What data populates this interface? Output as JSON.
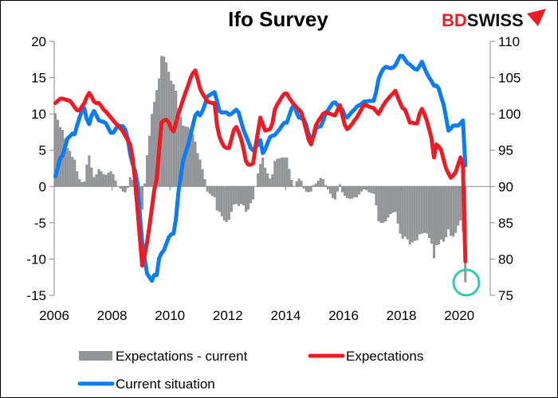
{
  "chart_data": {
    "type": "bar+line",
    "title": "Ifo Survey",
    "logo": "BDSWISS",
    "left_axis": {
      "range": [
        -15,
        20
      ],
      "ticks": [
        "20",
        "15",
        "10",
        "5",
        "0",
        "-5",
        "-10",
        "-15"
      ]
    },
    "right_axis": {
      "range": [
        75,
        110
      ],
      "ticks": [
        "110",
        "105",
        "100",
        "95",
        "90",
        "85",
        "80",
        "75"
      ]
    },
    "x_ticks": [
      "2006",
      "2008",
      "2010",
      "2012",
      "2014",
      "2016",
      "2018",
      "2020"
    ],
    "grid": false,
    "legend_placement": "bottom",
    "colors": {
      "bars": "#939598",
      "expectations": "#ED1C24",
      "current": "#0A7CF5",
      "highlight_circle": "#2ECDB0"
    },
    "annotation": "circle highlighting the March 2020 bar",
    "series": [
      {
        "name": "Expectations - current",
        "type": "bar",
        "axis": "left",
        "monthly": {
          "2006": [
            10.1,
            9.2,
            8.2,
            7.8,
            6.6,
            5.3,
            4.9,
            4.1,
            3.7,
            2.1,
            1.0,
            0.6
          ],
          "2007": [
            0.7,
            3.0,
            4.3,
            2.6,
            1.3,
            1.7,
            2.4,
            2.1,
            1.7,
            1.6,
            1.9,
            2.1
          ],
          "2008": [
            1.7,
            0.8,
            0.0,
            -0.3,
            -0.7,
            -0.8,
            -0.2,
            1.3,
            0.9,
            -1.2,
            -3.5,
            -3.2
          ],
          "2009": [
            -3.2,
            0.4,
            4.3,
            7.0,
            10.0,
            11.7,
            13.3,
            14.9,
            18.0,
            17.9,
            17.1,
            15.8
          ],
          "2010": [
            14.6,
            14.1,
            13.2,
            10.8,
            9.6,
            8.4,
            8.3,
            8.2,
            7.9,
            7.2,
            6.2,
            4.6
          ],
          "2011": [
            3.7,
            2.4,
            1.0,
            -0.7,
            -1.0,
            -1.3,
            -1.5,
            -3.3,
            -3.5,
            -4.1,
            -4.7,
            -4.9
          ],
          "2012": [
            -4.6,
            -3.5,
            -2.5,
            -2.4,
            -2.7,
            -2.4,
            -2.6,
            -3.5,
            -3.2,
            -2.3,
            -1.8,
            0.0
          ],
          "2013": [
            1.8,
            3.1,
            4.0,
            2.6,
            1.8,
            1.1,
            1.7,
            3.5,
            3.8,
            3.9,
            4.0,
            4.0
          ],
          "2014": [
            4.0,
            2.4,
            0.9,
            0.0,
            0.7,
            1.1,
            0.8,
            -0.3,
            -0.7,
            -0.8,
            -0.7,
            0.2
          ],
          "2015": [
            0.4,
            0.8,
            1.2,
            1.0,
            0.2,
            -0.4,
            -1.0,
            -1.6,
            -1.8,
            -0.7,
            0.3,
            -0.8
          ],
          "2016": [
            -1.3,
            -1.6,
            -1.7,
            -1.7,
            -1.5,
            -1.5,
            -1.1,
            -0.7,
            -0.4,
            -0.5,
            -0.8,
            -0.9
          ],
          "2017": [
            -1.0,
            -2.6,
            -4.8,
            -5.0,
            -5.0,
            -4.8,
            -4.3,
            -3.8,
            -3.6,
            -3.5,
            -5.1,
            -6.5
          ],
          "2018": [
            -7.2,
            -6.9,
            -7.3,
            -8.0,
            -7.7,
            -7.5,
            -7.4,
            -6.6,
            -6.5,
            -6.4,
            -6.5,
            -7.1
          ],
          "2019": [
            -7.9,
            -9.9,
            -8.1,
            -8.0,
            -7.3,
            -7.6,
            -7.0,
            -5.9,
            -6.8,
            -6.9,
            -6.4,
            -5.4
          ],
          "2020": [
            -4.7,
            -6.2,
            -13.2
          ]
        }
      },
      {
        "name": "Expectations",
        "type": "line",
        "axis": "right",
        "monthly": {
          "2006": [
            101.5,
            101.8,
            102.1,
            102.1,
            102.0,
            101.9,
            101.8,
            101.4,
            100.9,
            100.5,
            100.5,
            101.0
          ],
          "2007": [
            101.5,
            102.3,
            102.9,
            102.4,
            101.7,
            101.5,
            101.5,
            101.1,
            100.6,
            100.3,
            99.9,
            99.5
          ],
          "2008": [
            99.1,
            98.7,
            98.4,
            98.0,
            97.6,
            97.0,
            96.4,
            95.8,
            94.0,
            91.0,
            87.0,
            83.0
          ],
          "2009": [
            79.1,
            80.5,
            82.3,
            84.5,
            87.0,
            89.5,
            91.1,
            95.0,
            98.8,
            99.1,
            99.2,
            98.8
          ],
          "2010": [
            98.0,
            97.6,
            98.8,
            100.0,
            101.0,
            102.0,
            103.0,
            103.9,
            104.9,
            105.6,
            106.0,
            104.8
          ],
          "2011": [
            103.5,
            102.8,
            102.3,
            101.7,
            101.6,
            101.5,
            101.5,
            98.5,
            96.9,
            96.1,
            95.5,
            95.3
          ],
          "2012": [
            95.3,
            96.5,
            97.8,
            98.2,
            97.5,
            96.6,
            95.2,
            93.5,
            93.0,
            93.0,
            93.2,
            95.5
          ],
          "2013": [
            97.5,
            99.5,
            98.6,
            97.7,
            97.8,
            97.9,
            98.7,
            100.6,
            101.3,
            101.8,
            102.4,
            102.8
          ],
          "2014": [
            102.8,
            102.2,
            101.7,
            101.3,
            100.9,
            100.6,
            100.2,
            99.0,
            97.8,
            96.5,
            95.8,
            97.0
          ],
          "2015": [
            98.4,
            99.0,
            99.5,
            100.0,
            100.2,
            100.1,
            100.0,
            99.9,
            99.8,
            100.5,
            101.2,
            99.8
          ],
          "2016": [
            98.5,
            97.9,
            98.2,
            98.6,
            99.1,
            99.5,
            100.1,
            100.7,
            101.3,
            101.2,
            101.0,
            100.9
          ],
          "2017": [
            100.8,
            100.4,
            100.0,
            100.6,
            101.2,
            101.7,
            102.1,
            102.5,
            102.8,
            103.2,
            102.3,
            101.5
          ],
          "2018": [
            100.8,
            100.6,
            99.7,
            98.8,
            98.8,
            98.7,
            98.7,
            100.0,
            100.7,
            100.0,
            99.1,
            97.9
          ],
          "2019": [
            96.6,
            94.0,
            95.8,
            95.5,
            95.0,
            93.7,
            92.5,
            91.8,
            91.2,
            91.5,
            92.0,
            93.0
          ],
          "2020": [
            94.0,
            92.9,
            79.7
          ]
        }
      },
      {
        "name": "Current situation",
        "type": "line",
        "axis": "right",
        "monthly": {
          "2006": [
            91.4,
            92.6,
            93.9,
            94.3,
            95.4,
            96.6,
            96.9,
            97.3,
            97.2,
            98.4,
            99.5,
            100.4
          ],
          "2007": [
            100.8,
            99.3,
            98.6,
            99.8,
            100.4,
            99.8,
            99.1,
            99.0,
            98.9,
            98.7,
            98.0,
            97.4
          ],
          "2008": [
            97.4,
            97.9,
            98.4,
            98.3,
            98.3,
            97.8,
            96.6,
            94.5,
            93.1,
            92.2,
            90.5,
            86.2
          ],
          "2009": [
            82.3,
            80.1,
            78.0,
            77.5,
            77.0,
            77.8,
            77.8,
            80.1,
            80.8,
            81.2,
            82.1,
            83.0
          ],
          "2010": [
            83.4,
            83.5,
            85.6,
            89.2,
            91.4,
            93.6,
            94.7,
            95.7,
            97.0,
            98.4,
            99.8,
            100.2
          ],
          "2011": [
            99.8,
            100.4,
            101.3,
            102.4,
            102.6,
            102.8,
            103.0,
            101.8,
            100.4,
            100.2,
            100.2,
            100.2
          ],
          "2012": [
            99.9,
            100.0,
            100.3,
            100.6,
            100.2,
            99.0,
            97.8,
            97.0,
            96.2,
            95.3,
            95.0,
            95.5
          ],
          "2013": [
            95.7,
            96.4,
            94.6,
            95.1,
            96.0,
            96.8,
            97.0,
            97.1,
            97.5,
            97.9,
            98.4,
            98.8
          ],
          "2014": [
            98.8,
            99.8,
            100.8,
            101.3,
            100.2,
            99.5,
            99.4,
            99.3,
            98.5,
            97.3,
            96.5,
            96.8
          ],
          "2015": [
            98.0,
            98.2,
            98.3,
            99.0,
            100.0,
            100.5,
            101.0,
            101.5,
            101.6,
            101.2,
            100.9,
            100.6
          ],
          "2016": [
            99.8,
            99.5,
            99.9,
            100.3,
            100.6,
            101.0,
            101.2,
            101.4,
            101.7,
            101.7,
            101.8,
            101.8
          ],
          "2017": [
            101.8,
            103.0,
            104.8,
            105.6,
            106.2,
            106.5,
            106.4,
            106.3,
            106.4,
            106.7,
            107.4,
            108.0
          ],
          "2018": [
            108.0,
            107.5,
            107.0,
            106.8,
            106.5,
            106.2,
            106.1,
            106.6,
            107.2,
            106.4,
            105.6,
            105.0
          ],
          "2019": [
            104.5,
            103.9,
            103.9,
            103.5,
            102.3,
            101.3,
            99.5,
            97.7,
            98.0,
            98.4,
            98.4,
            98.4
          ],
          "2020": [
            98.7,
            99.1,
            92.9
          ]
        }
      }
    ]
  }
}
